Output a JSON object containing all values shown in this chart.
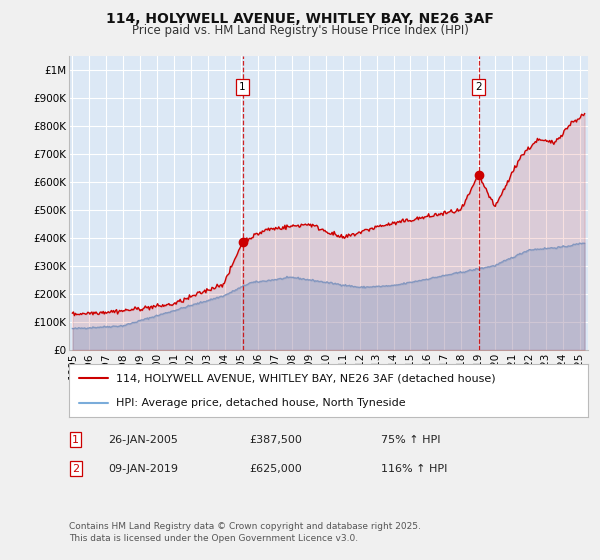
{
  "title": "114, HOLYWELL AVENUE, WHITLEY BAY, NE26 3AF",
  "subtitle": "Price paid vs. HM Land Registry's House Price Index (HPI)",
  "background_color": "#f0f0f0",
  "plot_bg_color": "#dce8f5",
  "grid_color": "#ffffff",
  "ylim": [
    0,
    1050000
  ],
  "xlim_start": 1994.8,
  "xlim_end": 2025.5,
  "yticks": [
    0,
    100000,
    200000,
    300000,
    400000,
    500000,
    600000,
    700000,
    800000,
    900000,
    1000000
  ],
  "ytick_labels": [
    "£0",
    "£100K",
    "£200K",
    "£300K",
    "£400K",
    "£500K",
    "£600K",
    "£700K",
    "£800K",
    "£900K",
    "£1M"
  ],
  "xticks": [
    1995,
    1996,
    1997,
    1998,
    1999,
    2000,
    2001,
    2002,
    2003,
    2004,
    2005,
    2006,
    2007,
    2008,
    2009,
    2010,
    2011,
    2012,
    2013,
    2014,
    2015,
    2016,
    2017,
    2018,
    2019,
    2020,
    2021,
    2022,
    2023,
    2024,
    2025
  ],
  "red_line_color": "#cc0000",
  "blue_line_color": "#7aacda",
  "sale1_x": 2005.07,
  "sale1_y": 387500,
  "sale2_x": 2019.03,
  "sale2_y": 625000,
  "legend_red_label": "114, HOLYWELL AVENUE, WHITLEY BAY, NE26 3AF (detached house)",
  "legend_blue_label": "HPI: Average price, detached house, North Tyneside",
  "table_row1": [
    "1",
    "26-JAN-2005",
    "£387,500",
    "75% ↑ HPI"
  ],
  "table_row2": [
    "2",
    "09-JAN-2019",
    "£625,000",
    "116% ↑ HPI"
  ],
  "footer": "Contains HM Land Registry data © Crown copyright and database right 2025.\nThis data is licensed under the Open Government Licence v3.0.",
  "title_fontsize": 10,
  "subtitle_fontsize": 8.5,
  "tick_fontsize": 7.5,
  "legend_fontsize": 8,
  "footer_fontsize": 6.5
}
